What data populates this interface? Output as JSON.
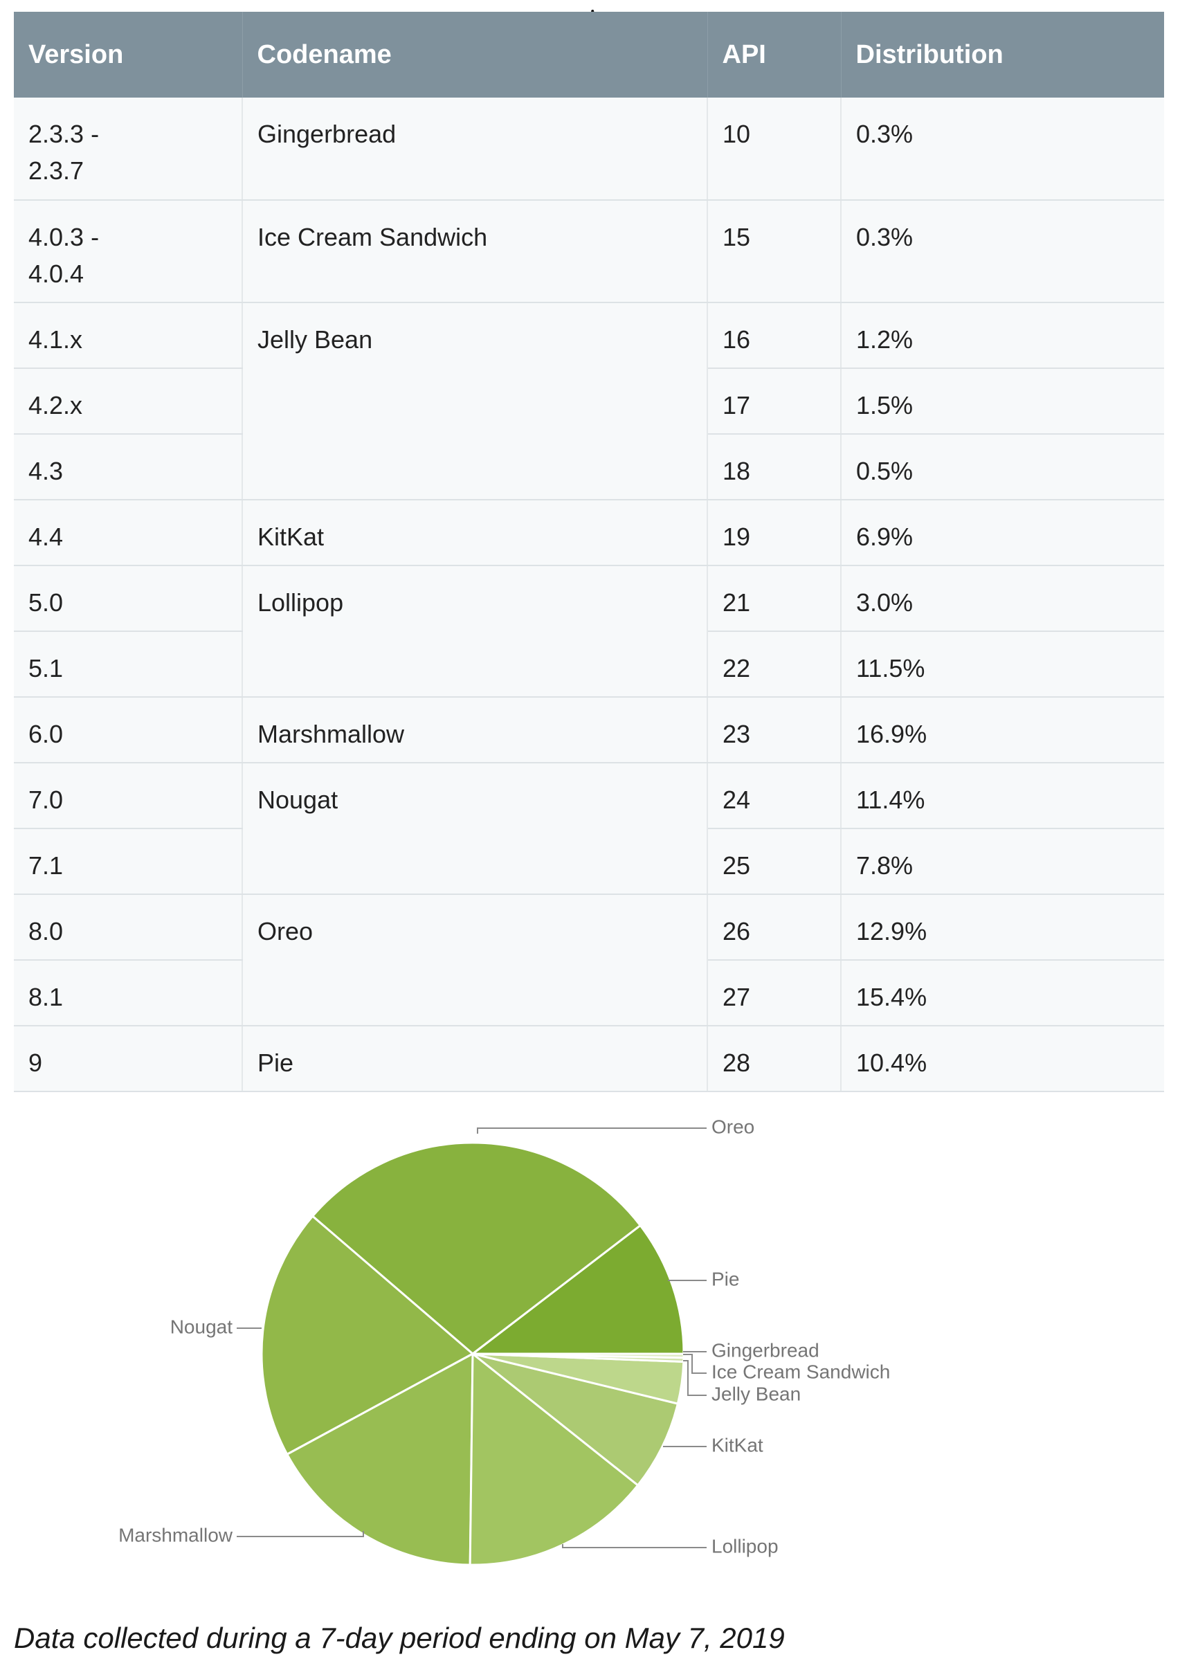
{
  "table": {
    "headers": [
      "Version",
      "Codename",
      "API",
      "Distribution"
    ],
    "rows": [
      {
        "version": "2.3.3 -\n2.3.7",
        "codename": "Gingerbread",
        "api": "10",
        "distribution": "0.3%"
      },
      {
        "version": "4.0.3 -\n4.0.4",
        "codename": "Ice Cream Sandwich",
        "api": "15",
        "distribution": "0.3%"
      },
      {
        "version": "4.1.x",
        "codename": "Jelly Bean",
        "api": "16",
        "distribution": "1.2%"
      },
      {
        "version": "4.2.x",
        "codename": "",
        "api": "17",
        "distribution": "1.5%"
      },
      {
        "version": "4.3",
        "codename": "",
        "api": "18",
        "distribution": "0.5%"
      },
      {
        "version": "4.4",
        "codename": "KitKat",
        "api": "19",
        "distribution": "6.9%"
      },
      {
        "version": "5.0",
        "codename": "Lollipop",
        "api": "21",
        "distribution": "3.0%"
      },
      {
        "version": "5.1",
        "codename": "",
        "api": "22",
        "distribution": "11.5%"
      },
      {
        "version": "6.0",
        "codename": "Marshmallow",
        "api": "23",
        "distribution": "16.9%"
      },
      {
        "version": "7.0",
        "codename": "Nougat",
        "api": "24",
        "distribution": "11.4%"
      },
      {
        "version": "7.1",
        "codename": "",
        "api": "25",
        "distribution": "7.8%"
      },
      {
        "version": "8.0",
        "codename": "Oreo",
        "api": "26",
        "distribution": "12.9%"
      },
      {
        "version": "8.1",
        "codename": "",
        "api": "27",
        "distribution": "15.4%"
      },
      {
        "version": "9",
        "codename": "Pie",
        "api": "28",
        "distribution": "10.4%"
      }
    ]
  },
  "chart_data": {
    "type": "pie",
    "title": "",
    "start": "3 o'clock",
    "direction": "counter-clockwise",
    "slices": [
      {
        "label": "Pie",
        "value": 10.4,
        "color": "#7cab30"
      },
      {
        "label": "Oreo",
        "value": 28.3,
        "color": "#88b23e"
      },
      {
        "label": "Nougat",
        "value": 19.2,
        "color": "#92b849"
      },
      {
        "label": "Marshmallow",
        "value": 16.9,
        "color": "#98bd52"
      },
      {
        "label": "Lollipop",
        "value": 14.5,
        "color": "#a2c561"
      },
      {
        "label": "KitKat",
        "value": 6.9,
        "color": "#acca72"
      },
      {
        "label": "Jelly Bean",
        "value": 3.2,
        "color": "#bdd78b"
      },
      {
        "label": "Ice Cream Sandwich",
        "value": 0.3,
        "color": "#d1e3ab"
      },
      {
        "label": "Gingerbread",
        "value": 0.3,
        "color": "#dfebc4"
      }
    ],
    "label_color": "#757575",
    "leader_color": "#8a8a8a"
  },
  "footnote": "Data collected during a 7-day period ending on May 7, 2019"
}
